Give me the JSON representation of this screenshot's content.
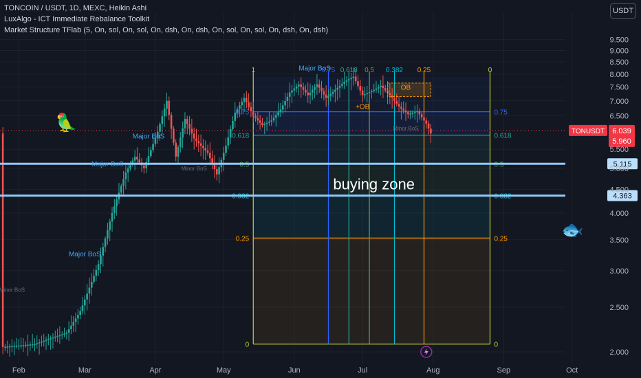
{
  "header": {
    "symbol_line": "TONCOIN / USDT, 1D, MEXC, Heikin Ashi",
    "indicator_1": "LuxAlgo - ICT Immediate Rebalance Toolkit",
    "indicator_2": "Market Structure TFlab (5, On, sol, On, sol, On, dsh, On, dsh, On, sol, On, sol, On, dsh, On, dsh)"
  },
  "currency_button": "USDT",
  "icons": [
    "parrot-emoji-icon",
    "fish-emoji-icon",
    "lightning-event-icon"
  ],
  "colors": {
    "bg": "#131722",
    "up": "#26a69a",
    "down": "#ef5350",
    "fib_blue": "#2962ff",
    "fib_green": "#26a69a",
    "fib_yellow": "#c6d434",
    "fib_cyan": "#00bcd4",
    "fib_orange": "#ff9800",
    "level_line": "#90caf9",
    "price_badge": "#f23645"
  },
  "chart_data": {
    "type": "candlestick",
    "title": "TONCOIN / USDT, 1D, MEXC, Heikin Ashi",
    "y_scale": "log",
    "ylim": [
      1.9,
      11.0
    ],
    "y_ticks": [
      {
        "v": 9.5,
        "label": "9.500"
      },
      {
        "v": 9.0,
        "label": "9.000"
      },
      {
        "v": 8.5,
        "label": "8.500"
      },
      {
        "v": 8.0,
        "label": "8.000"
      },
      {
        "v": 7.5,
        "label": "7.500"
      },
      {
        "v": 7.0,
        "label": "7.000"
      },
      {
        "v": 6.5,
        "label": "6.500"
      },
      {
        "v": 5.5,
        "label": "5.500"
      },
      {
        "v": 5.0,
        "label": "5.000"
      },
      {
        "v": 4.5,
        "label": "4.500"
      },
      {
        "v": 4.0,
        "label": "4.000"
      },
      {
        "v": 3.5,
        "label": "3.500"
      },
      {
        "v": 3.0,
        "label": "3.000"
      },
      {
        "v": 2.5,
        "label": "2.500"
      },
      {
        "v": 2.0,
        "label": "2.000"
      }
    ],
    "x_labels": [
      {
        "day": 1,
        "label": "Feb"
      },
      {
        "day": 30,
        "label": "Mar"
      },
      {
        "day": 61,
        "label": "Apr"
      },
      {
        "day": 91,
        "label": "May"
      },
      {
        "day": 122,
        "label": "Jun"
      },
      {
        "day": 152,
        "label": "Jul"
      },
      {
        "day": 183,
        "label": "Aug"
      },
      {
        "day": 214,
        "label": "Sep"
      },
      {
        "day": 244,
        "label": "Oct"
      }
    ],
    "price_path": [
      [
        -6,
        2.05
      ],
      [
        8,
        2.08
      ],
      [
        16,
        2.15
      ],
      [
        22,
        2.2
      ],
      [
        28,
        2.45
      ],
      [
        36,
        3.1
      ],
      [
        42,
        4.0
      ],
      [
        48,
        4.9
      ],
      [
        52,
        5.3
      ],
      [
        56,
        5.0
      ],
      [
        62,
        6.0
      ],
      [
        66,
        7.0
      ],
      [
        70,
        5.3
      ],
      [
        74,
        6.4
      ],
      [
        78,
        5.8
      ],
      [
        84,
        5.4
      ],
      [
        88,
        4.85
      ],
      [
        92,
        5.6
      ],
      [
        96,
        6.6
      ],
      [
        100,
        7.1
      ],
      [
        104,
        6.5
      ],
      [
        108,
        6.2
      ],
      [
        112,
        6.35
      ],
      [
        116,
        6.7
      ],
      [
        120,
        7.3
      ],
      [
        124,
        7.6
      ],
      [
        128,
        7.2
      ],
      [
        132,
        7.6
      ],
      [
        136,
        7.1
      ],
      [
        140,
        7.4
      ],
      [
        144,
        7.7
      ],
      [
        148,
        7.9
      ],
      [
        152,
        7.2
      ],
      [
        156,
        7.35
      ],
      [
        160,
        7.55
      ],
      [
        164,
        7.2
      ],
      [
        168,
        6.8
      ],
      [
        172,
        6.55
      ],
      [
        176,
        6.65
      ],
      [
        180,
        6.25
      ],
      [
        182,
        5.95
      ]
    ],
    "last_price": {
      "label": "TONUSDT",
      "value": "6.039",
      "low": "5.960"
    },
    "horizontal_levels": [
      {
        "value": 5.115,
        "label": "5.115"
      },
      {
        "value": 4.363,
        "label": "4.363"
      }
    ],
    "fib_retracement": {
      "start_day": 104,
      "end_day": 208,
      "high": 7.9,
      "low": 2.08,
      "levels": [
        {
          "ratio": 0.75,
          "price": 6.63,
          "label": "0.75",
          "label_left": "0.75"
        },
        {
          "ratio": 0.618,
          "price": 5.9,
          "label": "0.618",
          "label_left": "0.618"
        },
        {
          "ratio": 0.5,
          "price": 5.115,
          "label": "0.5",
          "label_left": "0.5"
        },
        {
          "ratio": 0.382,
          "price": 4.363,
          "label": "0.382",
          "label_left": "0.382"
        },
        {
          "ratio": 0.25,
          "price": 3.53,
          "label": "0.25",
          "label_left": "0.25"
        },
        {
          "ratio": 0,
          "price": 2.08,
          "label": "0",
          "label_left": "0"
        }
      ]
    },
    "fib_time_zones": [
      {
        "day": 104,
        "label": "1"
      },
      {
        "day": 137,
        "label": "0.75"
      },
      {
        "day": 146,
        "label": "0.618"
      },
      {
        "day": 155,
        "label": "0.5"
      },
      {
        "day": 166,
        "label": "0.382"
      },
      {
        "day": 179,
        "label": "0.25"
      },
      {
        "day": 208,
        "label": "0"
      }
    ],
    "annotations": [
      {
        "text": "Major BoS",
        "day": 40,
        "price": 5.05
      },
      {
        "text": "Major BoS",
        "day": 58,
        "price": 5.8
      },
      {
        "text": "Major BoS",
        "day": 30,
        "price": 3.22
      },
      {
        "text": "Major BoS",
        "day": 131,
        "price": 8.15
      },
      {
        "text": "Minor BoS",
        "day": -2,
        "price": 2.7
      },
      {
        "text": "Minor BoS",
        "day": 78,
        "price": 4.95
      },
      {
        "text": "Minor BoS",
        "day": 171,
        "price": 6.05
      },
      {
        "text": "OB",
        "day": 171,
        "price": 7.4
      },
      {
        "text": "+OB",
        "day": 152,
        "price": 6.72
      }
    ],
    "zone_label": "buying zone",
    "grid": true,
    "legend": "none"
  }
}
